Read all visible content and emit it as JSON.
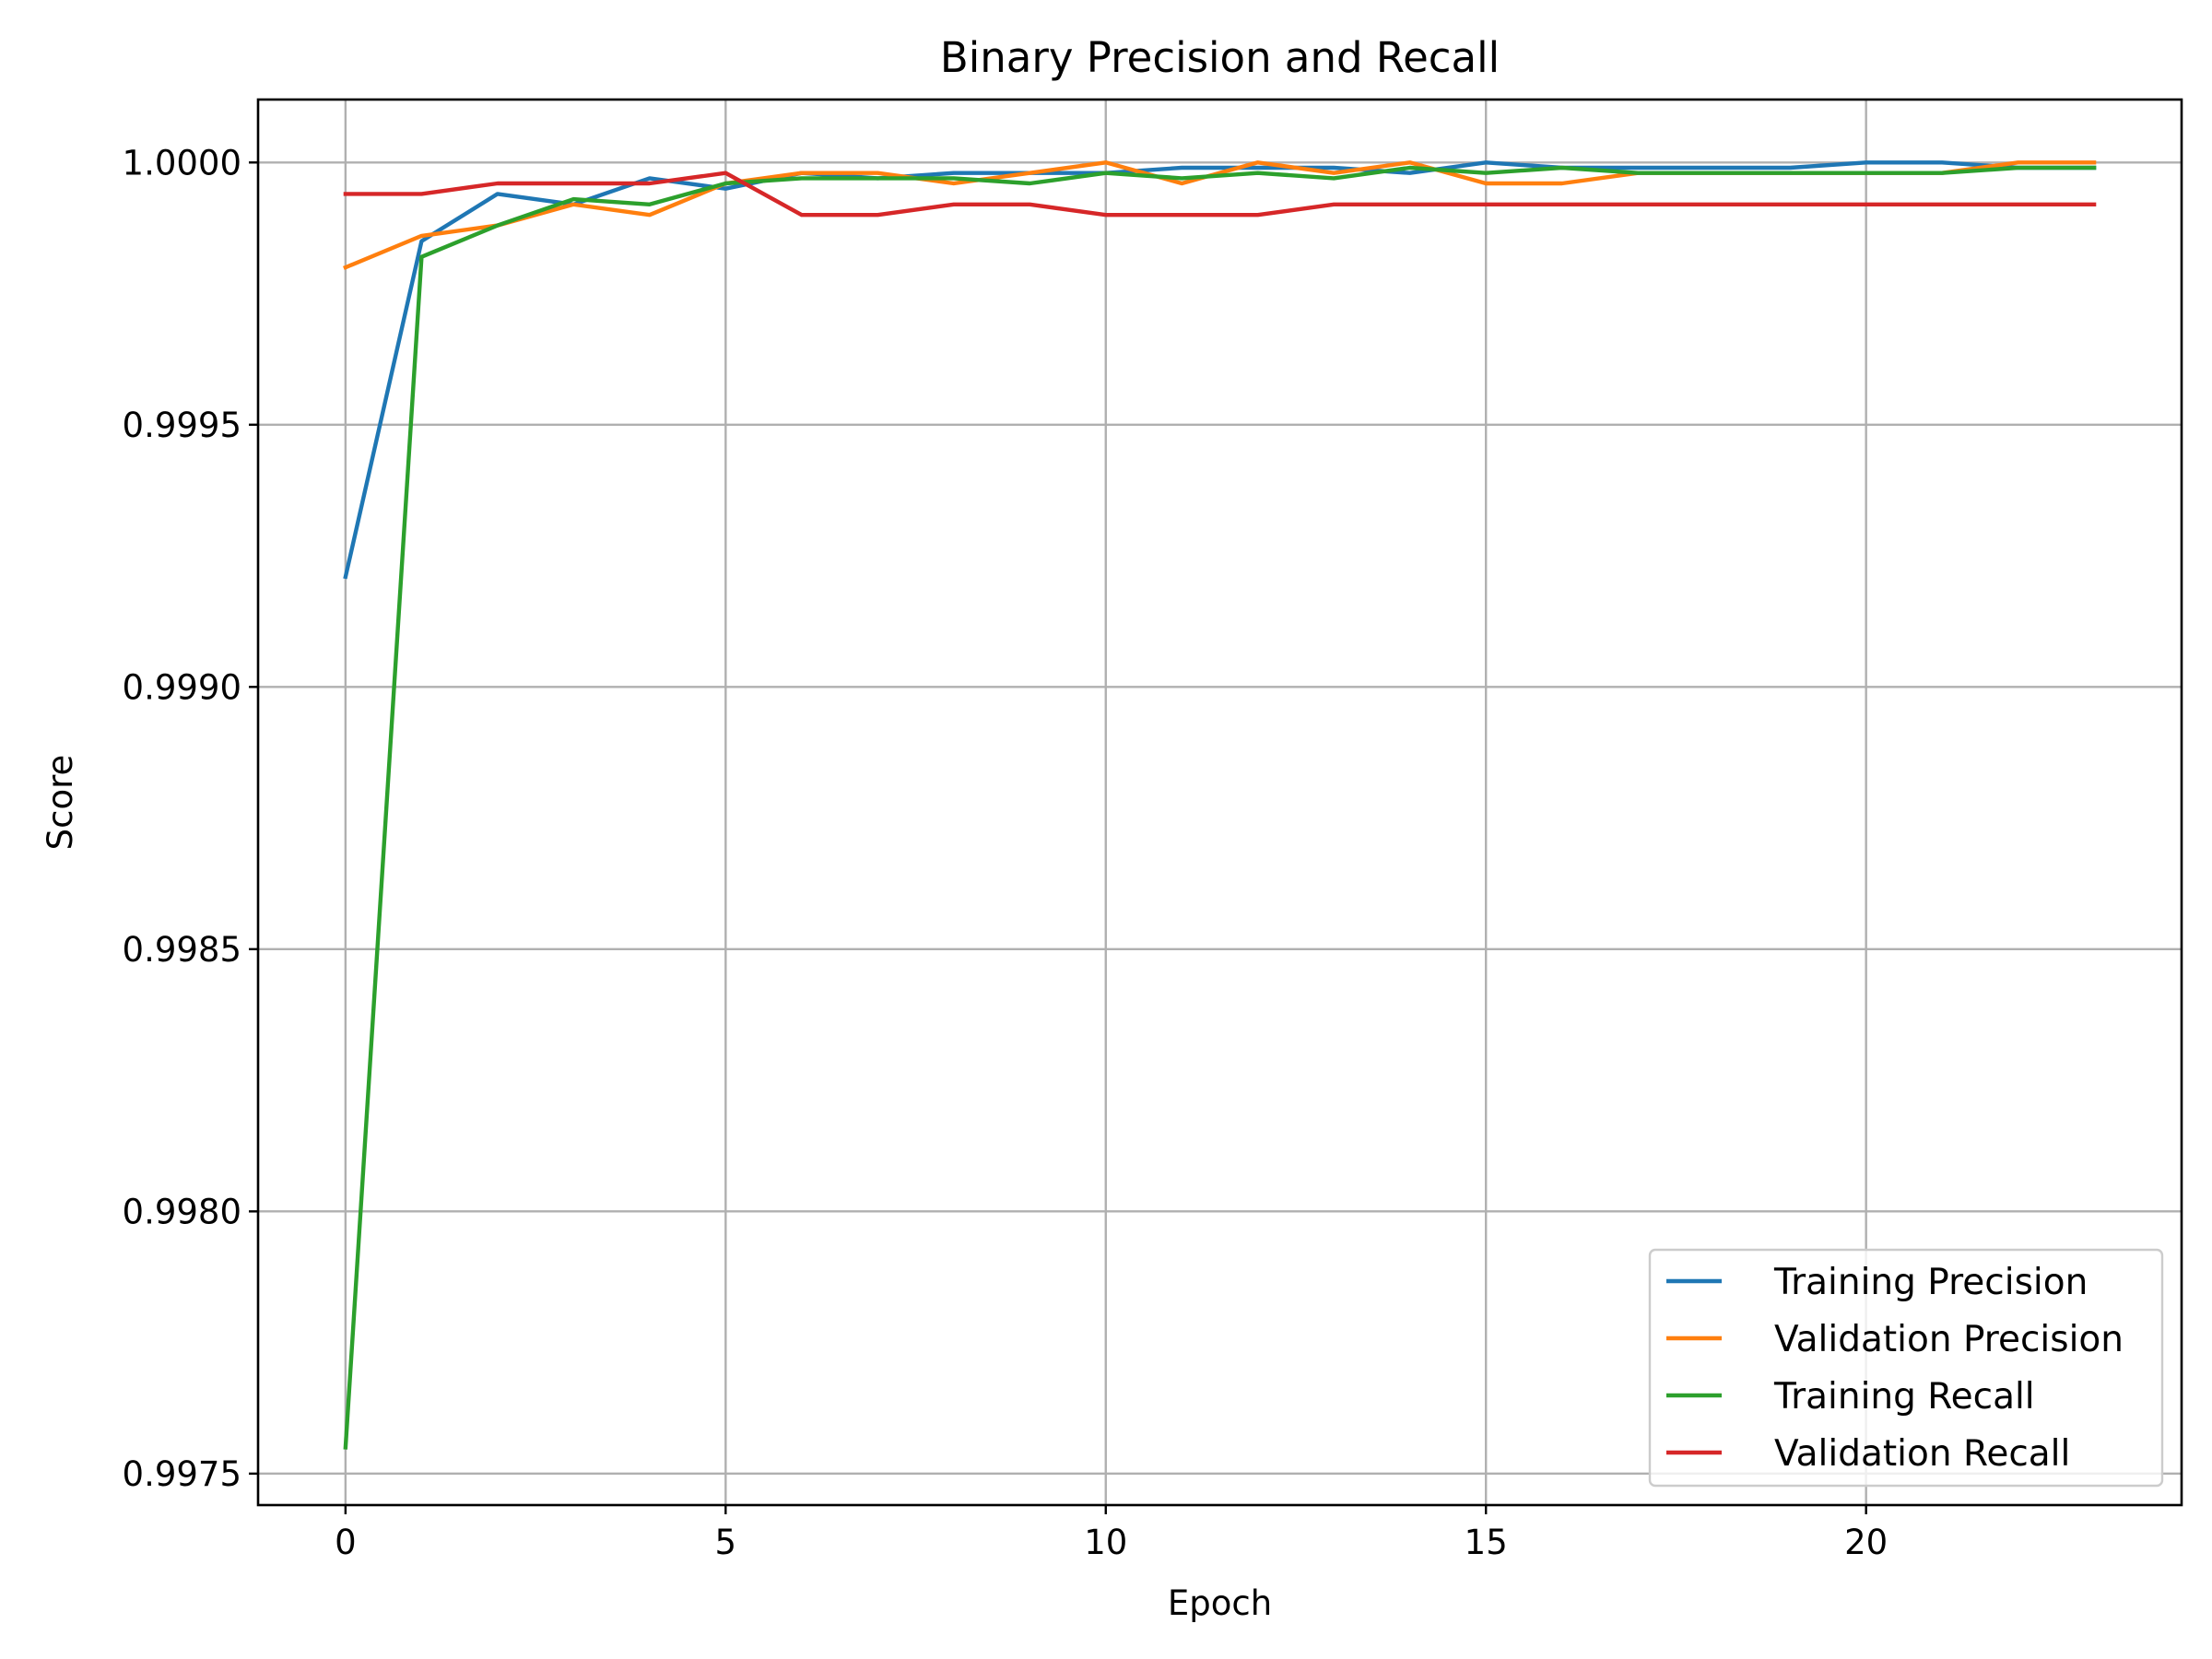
{
  "chart_data": {
    "type": "line",
    "title": "Binary Precision and Recall",
    "xlabel": "Epoch",
    "ylabel": "Score",
    "xlim": [
      -1.15,
      24.15
    ],
    "ylim": [
      0.99744,
      1.00012
    ],
    "x_ticks": [
      0,
      5,
      10,
      15,
      20
    ],
    "x_tick_labels": [
      "0",
      "5",
      "10",
      "15",
      "20"
    ],
    "y_ticks": [
      0.9975,
      0.998,
      0.9985,
      0.999,
      0.9995,
      1.0
    ],
    "y_tick_labels": [
      "0.9975",
      "0.9980",
      "0.9985",
      "0.9990",
      "0.9995",
      "1.0000"
    ],
    "grid": true,
    "legend_position": "lower-right",
    "x": [
      0,
      1,
      2,
      3,
      4,
      5,
      6,
      7,
      8,
      9,
      10,
      11,
      12,
      13,
      14,
      15,
      16,
      17,
      18,
      19,
      20,
      21,
      22,
      23
    ],
    "series": [
      {
        "name": "Training Precision",
        "color": "#1f77b4",
        "values": [
          0.99921,
          0.99985,
          0.99994,
          0.99992,
          0.99997,
          0.99995,
          0.99998,
          0.99997,
          0.99998,
          0.99998,
          0.99998,
          0.99999,
          0.99999,
          0.99999,
          0.99998,
          1.0,
          0.99999,
          0.99999,
          0.99999,
          0.99999,
          1.0,
          1.0,
          0.99999,
          0.99999
        ]
      },
      {
        "name": "Validation Precision",
        "color": "#ff7f0e",
        "values": [
          0.9998,
          0.99986,
          0.99988,
          0.99992,
          0.9999,
          0.99996,
          0.99998,
          0.99998,
          0.99996,
          0.99998,
          1.0,
          0.99996,
          1.0,
          0.99998,
          1.0,
          0.99996,
          0.99996,
          0.99998,
          0.99998,
          0.99998,
          0.99998,
          0.99998,
          1.0,
          1.0
        ]
      },
      {
        "name": "Training Recall",
        "color": "#2ca02c",
        "values": [
          0.99755,
          0.99982,
          0.99988,
          0.99993,
          0.99992,
          0.99996,
          0.99997,
          0.99997,
          0.99997,
          0.99996,
          0.99998,
          0.99997,
          0.99998,
          0.99997,
          0.99999,
          0.99998,
          0.99999,
          0.99998,
          0.99998,
          0.99998,
          0.99998,
          0.99998,
          0.99999,
          0.99999
        ]
      },
      {
        "name": "Validation Recall",
        "color": "#d62728",
        "values": [
          0.99994,
          0.99994,
          0.99996,
          0.99996,
          0.99996,
          0.99998,
          0.9999,
          0.9999,
          0.99992,
          0.99992,
          0.9999,
          0.9999,
          0.9999,
          0.99992,
          0.99992,
          0.99992,
          0.99992,
          0.99992,
          0.99992,
          0.99992,
          0.99992,
          0.99992,
          0.99992,
          0.99992
        ]
      }
    ]
  }
}
